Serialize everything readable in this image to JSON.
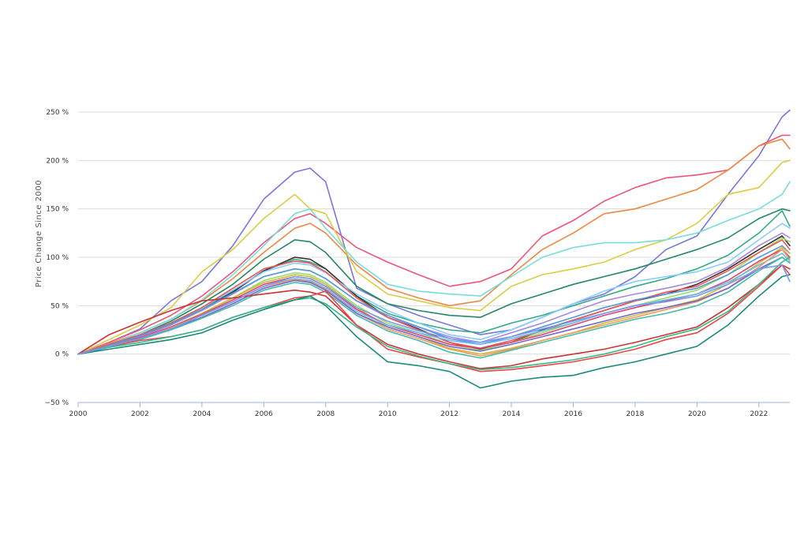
{
  "chart_data": {
    "type": "line",
    "title": "",
    "xlabel": "",
    "ylabel": "Price Change Since 2000",
    "xlim": [
      2000,
      2023
    ],
    "ylim": [
      -50,
      250
    ],
    "x_ticks": [
      2000,
      2002,
      2004,
      2006,
      2008,
      2010,
      2012,
      2014,
      2016,
      2018,
      2020,
      2022
    ],
    "x_tick_labels": [
      "2000",
      "2002",
      "2004",
      "2006",
      "2008",
      "2010",
      "2012",
      "2014",
      "2016",
      "2018",
      "2020",
      "2022"
    ],
    "y_ticks": [
      -50,
      0,
      50,
      100,
      150,
      200,
      250
    ],
    "y_tick_labels": [
      "−50 %",
      "0 %",
      "50 %",
      "100 %",
      "150 %",
      "200 %",
      "250 %"
    ],
    "grid": "horizontal",
    "legend": "none",
    "x": [
      2000,
      2001,
      2002,
      2003,
      2004,
      2005,
      2006,
      2007,
      2007.5,
      2008,
      2009,
      2010,
      2011,
      2012,
      2013,
      2014,
      2015,
      2016,
      2017,
      2018,
      2019,
      2020,
      2021,
      2022,
      2022.75,
      2023
    ],
    "series": [
      {
        "color": "#7777dd",
        "values": [
          0,
          12,
          26,
          55,
          75,
          112,
          160,
          188,
          192,
          178,
          68,
          52,
          40,
          30,
          20,
          25,
          38,
          52,
          62,
          80,
          108,
          122,
          165,
          205,
          245,
          252
        ]
      },
      {
        "color": "#ee5577",
        "values": [
          0,
          12,
          25,
          40,
          60,
          85,
          115,
          140,
          145,
          135,
          110,
          95,
          82,
          70,
          75,
          88,
          122,
          138,
          158,
          172,
          182,
          185,
          190,
          215,
          226,
          226
        ]
      },
      {
        "color": "#ee8844",
        "values": [
          0,
          11,
          22,
          36,
          55,
          78,
          105,
          130,
          135,
          125,
          92,
          68,
          58,
          50,
          55,
          82,
          108,
          125,
          145,
          150,
          160,
          170,
          190,
          215,
          222,
          212
        ]
      },
      {
        "color": "#ddcc44",
        "values": [
          0,
          15,
          30,
          48,
          85,
          108,
          140,
          165,
          150,
          145,
          85,
          62,
          55,
          48,
          45,
          70,
          82,
          88,
          95,
          108,
          118,
          135,
          165,
          172,
          198,
          200
        ]
      },
      {
        "color": "#77dddd",
        "values": [
          0,
          10,
          22,
          36,
          56,
          82,
          112,
          145,
          150,
          130,
          95,
          72,
          65,
          62,
          60,
          80,
          100,
          110,
          115,
          115,
          118,
          125,
          138,
          150,
          165,
          178
        ]
      },
      {
        "color": "#228866",
        "values": [
          0,
          9,
          20,
          34,
          52,
          72,
          98,
          118,
          116,
          105,
          70,
          52,
          45,
          40,
          38,
          52,
          62,
          72,
          80,
          88,
          98,
          108,
          120,
          140,
          150,
          148
        ]
      },
      {
        "color": "#33aa88",
        "values": [
          0,
          9,
          19,
          32,
          48,
          65,
          86,
          98,
          95,
          88,
          60,
          42,
          32,
          25,
          22,
          32,
          40,
          50,
          60,
          70,
          78,
          88,
          102,
          125,
          148,
          132
        ]
      },
      {
        "color": "#333333",
        "values": [
          0,
          9,
          19,
          31,
          46,
          64,
          86,
          100,
          98,
          88,
          60,
          38,
          26,
          12,
          5,
          12,
          25,
          35,
          45,
          55,
          62,
          72,
          88,
          108,
          122,
          112
        ]
      },
      {
        "color": "#88ccff",
        "values": [
          0,
          9,
          20,
          32,
          48,
          66,
          85,
          94,
          92,
          84,
          62,
          45,
          32,
          20,
          15,
          25,
          38,
          52,
          65,
          75,
          80,
          85,
          95,
          118,
          135,
          130
        ]
      },
      {
        "color": "#aa88dd",
        "values": [
          0,
          8,
          18,
          30,
          45,
          62,
          80,
          88,
          86,
          78,
          55,
          38,
          28,
          18,
          12,
          22,
          32,
          44,
          55,
          62,
          68,
          75,
          90,
          112,
          125,
          120
        ]
      },
      {
        "color": "#99dd66",
        "values": [
          0,
          8,
          17,
          28,
          42,
          58,
          76,
          84,
          82,
          74,
          50,
          32,
          22,
          10,
          4,
          12,
          22,
          32,
          42,
          50,
          58,
          66,
          82,
          105,
          120,
          116
        ]
      },
      {
        "color": "#ee5555",
        "values": [
          0,
          10,
          20,
          32,
          48,
          68,
          88,
          96,
          94,
          85,
          58,
          38,
          25,
          12,
          6,
          14,
          24,
          35,
          45,
          55,
          64,
          70,
          86,
          105,
          118,
          108
        ]
      },
      {
        "color": "#5599dd",
        "values": [
          0,
          9,
          19,
          31,
          46,
          63,
          80,
          88,
          86,
          78,
          55,
          40,
          28,
          16,
          10,
          18,
          28,
          38,
          48,
          56,
          62,
          68,
          82,
          100,
          112,
          104
        ]
      },
      {
        "color": "#ccbb33",
        "values": [
          0,
          8,
          17,
          28,
          42,
          58,
          74,
          82,
          80,
          72,
          48,
          28,
          18,
          6,
          0,
          6,
          14,
          22,
          32,
          40,
          48,
          56,
          72,
          94,
          110,
          104
        ]
      },
      {
        "color": "#dd4477",
        "values": [
          0,
          8,
          17,
          28,
          41,
          56,
          72,
          80,
          78,
          70,
          46,
          30,
          20,
          10,
          6,
          12,
          20,
          30,
          40,
          48,
          55,
          62,
          76,
          96,
          108,
          100
        ]
      },
      {
        "color": "#66bbee",
        "values": [
          0,
          8,
          16,
          27,
          40,
          54,
          70,
          78,
          76,
          68,
          44,
          30,
          22,
          14,
          10,
          16,
          24,
          32,
          42,
          50,
          56,
          62,
          74,
          92,
          104,
          96
        ]
      },
      {
        "color": "#ee9966",
        "values": [
          0,
          8,
          16,
          27,
          40,
          54,
          70,
          77,
          75,
          67,
          42,
          26,
          16,
          5,
          -2,
          5,
          14,
          22,
          30,
          38,
          46,
          54,
          68,
          90,
          108,
          98
        ]
      },
      {
        "color": "#7766cc",
        "values": [
          0,
          8,
          16,
          26,
          38,
          52,
          68,
          76,
          74,
          66,
          42,
          28,
          18,
          8,
          3,
          10,
          18,
          26,
          34,
          42,
          48,
          55,
          68,
          88,
          100,
          94
        ]
      },
      {
        "color": "#44bbaa",
        "values": [
          0,
          7,
          15,
          25,
          37,
          50,
          66,
          74,
          72,
          64,
          40,
          24,
          14,
          2,
          -4,
          4,
          12,
          20,
          28,
          36,
          42,
          50,
          64,
          86,
          100,
          94
        ]
      },
      {
        "color": "#cc3333",
        "values": [
          0,
          20,
          33,
          45,
          55,
          58,
          62,
          66,
          64,
          60,
          30,
          10,
          0,
          -8,
          -15,
          -12,
          -5,
          0,
          5,
          12,
          20,
          28,
          48,
          72,
          92,
          88
        ]
      },
      {
        "color": "#ee4444",
        "values": [
          0,
          8,
          14,
          18,
          25,
          38,
          48,
          58,
          60,
          65,
          30,
          5,
          -3,
          -10,
          -18,
          -16,
          -12,
          -8,
          -2,
          5,
          15,
          22,
          42,
          70,
          92,
          82
        ]
      },
      {
        "color": "#33bb88",
        "values": [
          0,
          7,
          12,
          18,
          25,
          38,
          48,
          56,
          58,
          52,
          28,
          8,
          -2,
          -10,
          -16,
          -14,
          -10,
          -6,
          0,
          8,
          18,
          26,
          44,
          72,
          95,
          100
        ]
      },
      {
        "color": "#1a8a7a",
        "values": [
          0,
          5,
          10,
          15,
          22,
          35,
          46,
          56,
          60,
          50,
          18,
          -8,
          -12,
          -18,
          -35,
          -28,
          -24,
          -22,
          -14,
          -8,
          0,
          8,
          30,
          60,
          80,
          82
        ]
      },
      {
        "color": "#7799ee",
        "values": [
          0,
          8,
          16,
          26,
          40,
          54,
          70,
          80,
          78,
          70,
          48,
          34,
          24,
          16,
          12,
          18,
          26,
          34,
          42,
          50,
          54,
          60,
          72,
          88,
          92,
          75
        ]
      }
    ]
  }
}
